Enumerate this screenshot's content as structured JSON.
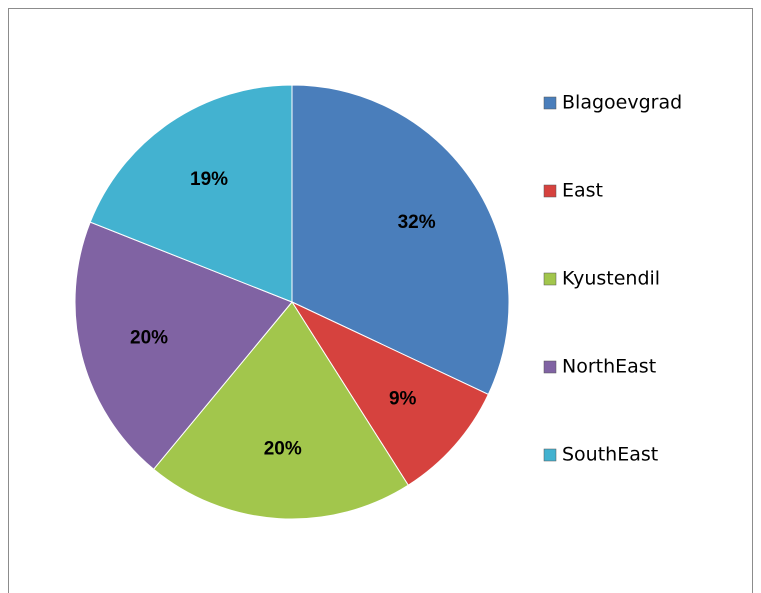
{
  "chart_data": {
    "type": "pie",
    "categories": [
      "Blagoevgrad",
      "East",
      "Kyustendil",
      "NorthEast",
      "SouthEast"
    ],
    "values": [
      32,
      9,
      20,
      20,
      19
    ],
    "value_labels": [
      "32%",
      "9%",
      "20%",
      "20%",
      "19%"
    ],
    "colors": [
      "#4a7ebb",
      "#d6423e",
      "#a2c64c",
      "#8063a3",
      "#43b2d0"
    ],
    "legend": "right"
  }
}
